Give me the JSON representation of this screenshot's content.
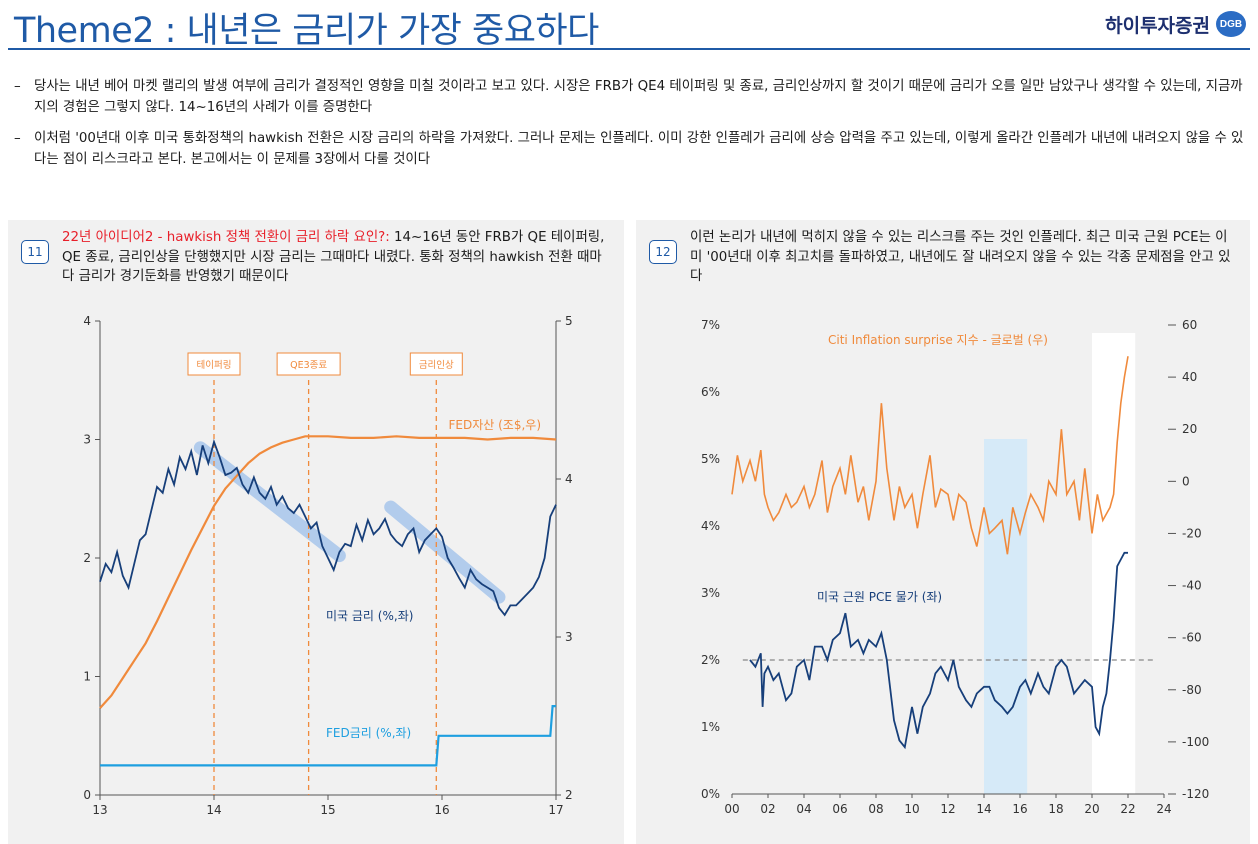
{
  "page": {
    "title": "Theme2 : 내년은 금리가 가장 중요하다",
    "logo_text": "하이투자증권",
    "logo_badge": "DGB"
  },
  "bullets": [
    {
      "dash": "–",
      "text": "당사는 내년 베어 마켓 랠리의 발생 여부에 금리가 결정적인 영향을 미칠 것이라고 보고 있다. 시장은 FRB가 QE4 테이퍼링 및 종료, 금리인상까지 할 것이기 때문에 금리가 오를 일만 남았구나 생각할 수 있는데, 지금까지의 경험은 그렇지 않다. 14~16년의 사례가 이를 증명한다"
    },
    {
      "dash": "–",
      "text": "이처럼 '00년대 이후 미국 통화정책의 hawkish 전환은 시장 금리의 하락을 가져왔다. 그러나 문제는 인플레다. 이미 강한 인플레가 금리에 상승 압력을 주고 있는데, 이렇게 올라간 인플레가 내년에 내려오지 않을 수 있다는 점이 리스크라고 본다. 본고에서는 이 문제를 3장에서 다룰 것이다"
    }
  ],
  "panel11": {
    "number": "11",
    "caption_highlight": "22년 아이디어2 - hawkish 정책 전환이 금리 하락 요인?:",
    "caption_rest": " 14~16년 동안 FRB가 QE 테이퍼링, QE 종료, 금리인상을 단행했지만 시장 금리는 그때마다 내렸다. 통화 정책의 hawkish 전환 때마다 금리가 경기둔화를 반영했기 때문이다",
    "colors": {
      "us_rate": "#173f7a",
      "fed_assets": "#f08a3c",
      "fed_rate": "#1e9fe0",
      "trend_band": "#a8c6ec",
      "event": "#f08a3c"
    }
  },
  "panel12": {
    "number": "12",
    "caption": "이런 논리가 내년에 먹히지 않을 수 있는 리스크를 주는 것인 인플레다. 최근 미국 근원 PCE는 이미 '00년대 이후 최고치를 돌파하였고, 내년에도 잘 내려오지 않을 수 있는 각종 문제점을 안고 있다",
    "colors": {
      "pce": "#173f7a",
      "citi": "#f08a3c",
      "shade_blue": "#d6eaf8",
      "shade_white": "#ffffff"
    }
  },
  "chart_data": [
    {
      "type": "line",
      "x_ticks": [
        "13",
        "14",
        "15",
        "16",
        "17"
      ],
      "y_left_ticks": [
        "0",
        "1",
        "2",
        "3",
        "4"
      ],
      "y_right_ticks": [
        "2",
        "3",
        "4",
        "5"
      ],
      "xlim": [
        13,
        17
      ],
      "ylim_left": [
        0,
        4
      ],
      "ylim_right": [
        2,
        5
      ],
      "events": [
        {
          "label": "테이퍼링",
          "x": 14.0
        },
        {
          "label": "QE3종료",
          "x": 14.83
        },
        {
          "label": "금리인상",
          "x": 15.95
        }
      ],
      "series": [
        {
          "name": "미국 금리 (%,좌)",
          "axis": "left",
          "x": [
            13.0,
            13.05,
            13.1,
            13.15,
            13.2,
            13.25,
            13.3,
            13.35,
            13.4,
            13.45,
            13.5,
            13.55,
            13.6,
            13.65,
            13.7,
            13.75,
            13.8,
            13.85,
            13.9,
            13.95,
            14.0,
            14.05,
            14.1,
            14.15,
            14.2,
            14.25,
            14.3,
            14.35,
            14.4,
            14.45,
            14.5,
            14.55,
            14.6,
            14.65,
            14.7,
            14.75,
            14.8,
            14.85,
            14.9,
            14.95,
            15.0,
            15.05,
            15.1,
            15.15,
            15.2,
            15.25,
            15.3,
            15.35,
            15.4,
            15.45,
            15.5,
            15.55,
            15.6,
            15.65,
            15.7,
            15.75,
            15.8,
            15.85,
            15.9,
            15.95,
            16.0,
            16.05,
            16.1,
            16.15,
            16.2,
            16.25,
            16.3,
            16.35,
            16.4,
            16.45,
            16.5,
            16.55,
            16.6,
            16.65,
            16.7,
            16.75,
            16.8,
            16.85,
            16.9,
            16.95,
            17.0
          ],
          "values": [
            1.8,
            1.95,
            1.88,
            2.05,
            1.85,
            1.75,
            1.95,
            2.15,
            2.2,
            2.4,
            2.6,
            2.55,
            2.75,
            2.62,
            2.85,
            2.75,
            2.9,
            2.7,
            2.95,
            2.8,
            2.98,
            2.85,
            2.7,
            2.72,
            2.76,
            2.62,
            2.55,
            2.68,
            2.55,
            2.5,
            2.6,
            2.45,
            2.52,
            2.42,
            2.38,
            2.45,
            2.35,
            2.25,
            2.3,
            2.1,
            2.0,
            1.9,
            2.05,
            2.12,
            2.1,
            2.28,
            2.15,
            2.32,
            2.2,
            2.25,
            2.33,
            2.2,
            2.14,
            2.1,
            2.2,
            2.25,
            2.05,
            2.15,
            2.2,
            2.25,
            2.18,
            2.0,
            1.92,
            1.83,
            1.75,
            1.9,
            1.82,
            1.78,
            1.75,
            1.72,
            1.58,
            1.52,
            1.6,
            1.6,
            1.65,
            1.7,
            1.75,
            1.84,
            2.0,
            2.35,
            2.45
          ]
        },
        {
          "name": "FED자산 (조$,우)",
          "axis": "right",
          "x": [
            13.0,
            13.1,
            13.2,
            13.3,
            13.4,
            13.5,
            13.6,
            13.7,
            13.8,
            13.9,
            14.0,
            14.1,
            14.2,
            14.3,
            14.4,
            14.5,
            14.6,
            14.7,
            14.8,
            14.9,
            15.0,
            15.2,
            15.4,
            15.6,
            15.8,
            16.0,
            16.2,
            16.4,
            16.6,
            16.8,
            17.0
          ],
          "values": [
            2.55,
            2.63,
            2.74,
            2.85,
            2.96,
            3.1,
            3.25,
            3.4,
            3.55,
            3.69,
            3.83,
            3.94,
            4.02,
            4.1,
            4.16,
            4.2,
            4.23,
            4.25,
            4.27,
            4.27,
            4.27,
            4.26,
            4.26,
            4.27,
            4.26,
            4.26,
            4.26,
            4.25,
            4.26,
            4.26,
            4.25
          ]
        },
        {
          "name": "FED금리 (%,좌)",
          "axis": "left",
          "x": [
            13.0,
            15.95,
            15.97,
            16.95,
            16.97,
            17.0
          ],
          "values": [
            0.25,
            0.25,
            0.5,
            0.5,
            0.75,
            0.75
          ]
        }
      ]
    },
    {
      "type": "line",
      "x_ticks": [
        "00",
        "02",
        "04",
        "06",
        "08",
        "10",
        "12",
        "14",
        "16",
        "18",
        "20",
        "22",
        "24"
      ],
      "y_left_ticks": [
        "0%",
        "1%",
        "2%",
        "3%",
        "4%",
        "5%",
        "6%",
        "7%"
      ],
      "y_right_ticks": [
        "-120",
        "-100",
        "-80",
        "-60",
        "-40",
        "-20",
        "0",
        "20",
        "40",
        "60"
      ],
      "xlim": [
        0,
        24
      ],
      "ylim_left": [
        0,
        7
      ],
      "ylim_right": [
        -120,
        60
      ],
      "reference_line_left": 2.0,
      "shaded_periods": [
        {
          "from": 14.0,
          "to": 16.4,
          "style": "blue"
        },
        {
          "from": 20.0,
          "to": 22.4,
          "style": "white"
        }
      ],
      "series": [
        {
          "name": "미국 근원 PCE 물가 (좌)",
          "axis": "left",
          "x": [
            1.0,
            1.3,
            1.6,
            1.7,
            1.8,
            2.0,
            2.3,
            2.6,
            3.0,
            3.3,
            3.6,
            4.0,
            4.3,
            4.6,
            5.0,
            5.3,
            5.6,
            6.0,
            6.3,
            6.6,
            7.0,
            7.3,
            7.6,
            8.0,
            8.3,
            8.6,
            9.0,
            9.3,
            9.6,
            10.0,
            10.3,
            10.6,
            11.0,
            11.3,
            11.6,
            12.0,
            12.3,
            12.6,
            13.0,
            13.3,
            13.6,
            14.0,
            14.3,
            14.6,
            15.0,
            15.3,
            15.6,
            16.0,
            16.3,
            16.6,
            17.0,
            17.3,
            17.6,
            18.0,
            18.3,
            18.6,
            19.0,
            19.3,
            19.6,
            20.0,
            20.2,
            20.4,
            20.6,
            20.8,
            21.0,
            21.2,
            21.4,
            21.6,
            21.8,
            22.0
          ],
          "values": [
            2.0,
            1.9,
            2.1,
            1.3,
            1.8,
            1.9,
            1.7,
            1.8,
            1.4,
            1.5,
            1.9,
            2.0,
            1.7,
            2.2,
            2.2,
            2.0,
            2.3,
            2.4,
            2.7,
            2.2,
            2.3,
            2.1,
            2.3,
            2.2,
            2.4,
            2.0,
            1.1,
            0.8,
            0.7,
            1.3,
            0.9,
            1.3,
            1.5,
            1.8,
            1.9,
            1.7,
            2.0,
            1.6,
            1.4,
            1.3,
            1.5,
            1.6,
            1.6,
            1.4,
            1.3,
            1.2,
            1.3,
            1.6,
            1.7,
            1.5,
            1.8,
            1.6,
            1.5,
            1.9,
            2.0,
            1.9,
            1.5,
            1.6,
            1.7,
            1.6,
            1.0,
            0.9,
            1.3,
            1.5,
            2.0,
            2.6,
            3.4,
            3.5,
            3.6,
            3.6
          ]
        },
        {
          "name": "Citi Inflation surprise 지수 - 글로벌 (우)",
          "axis": "right",
          "x": [
            0.0,
            0.3,
            0.6,
            1.0,
            1.3,
            1.6,
            1.8,
            2.0,
            2.3,
            2.6,
            3.0,
            3.3,
            3.6,
            4.0,
            4.3,
            4.6,
            5.0,
            5.3,
            5.6,
            6.0,
            6.3,
            6.6,
            7.0,
            7.3,
            7.6,
            8.0,
            8.3,
            8.6,
            9.0,
            9.3,
            9.6,
            10.0,
            10.3,
            10.6,
            11.0,
            11.3,
            11.6,
            12.0,
            12.3,
            12.6,
            13.0,
            13.3,
            13.6,
            14.0,
            14.3,
            14.6,
            15.0,
            15.3,
            15.6,
            16.0,
            16.3,
            16.6,
            17.0,
            17.3,
            17.6,
            18.0,
            18.3,
            18.6,
            19.0,
            19.3,
            19.6,
            20.0,
            20.3,
            20.6,
            21.0,
            21.2,
            21.4,
            21.6,
            21.8,
            22.0
          ],
          "values": [
            -5,
            10,
            0,
            8,
            0,
            12,
            -5,
            -10,
            -15,
            -12,
            -5,
            -10,
            -8,
            -2,
            -10,
            -5,
            8,
            -12,
            -2,
            5,
            -5,
            10,
            -8,
            -2,
            -15,
            0,
            30,
            5,
            -15,
            -2,
            -10,
            -5,
            -18,
            -5,
            10,
            -10,
            -3,
            -5,
            -15,
            -5,
            -8,
            -18,
            -25,
            -10,
            -20,
            -18,
            -15,
            -28,
            -10,
            -20,
            -12,
            -5,
            -10,
            -15,
            0,
            -5,
            20,
            -5,
            0,
            -15,
            5,
            -20,
            -5,
            -15,
            -10,
            -5,
            15,
            30,
            40,
            48
          ]
        }
      ]
    }
  ]
}
